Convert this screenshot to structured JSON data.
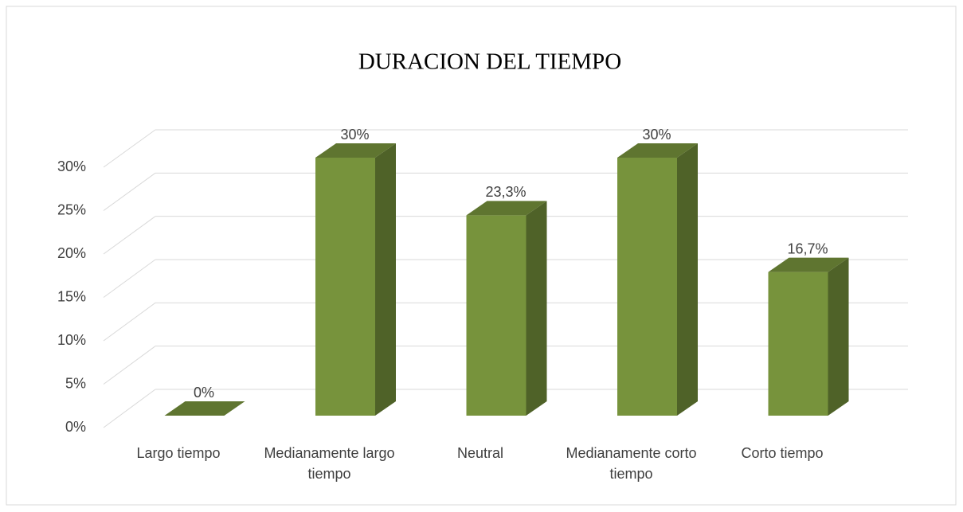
{
  "chart_data": {
    "type": "bar3d",
    "title": "DURACION DEL TIEMPO",
    "categories": [
      "Largo tiempo",
      "Medianamente largo tiempo",
      "Neutral",
      "Medianamente corto tiempo",
      "Corto tiempo"
    ],
    "values": [
      0,
      30,
      23.3,
      30,
      16.7
    ],
    "value_labels": [
      "0%",
      "30%",
      "23,3%",
      "30%",
      "16,7%"
    ],
    "color": "#77933c",
    "ylim": [
      0,
      30
    ],
    "yticks": [
      {
        "value": 0,
        "label": "0%"
      },
      {
        "value": 5,
        "label": "5%"
      },
      {
        "value": 10,
        "label": "10%"
      },
      {
        "value": 15,
        "label": "15%"
      },
      {
        "value": 20,
        "label": "20%"
      },
      {
        "value": 25,
        "label": "25%"
      },
      {
        "value": 30,
        "label": "30%"
      }
    ],
    "grid": true
  }
}
